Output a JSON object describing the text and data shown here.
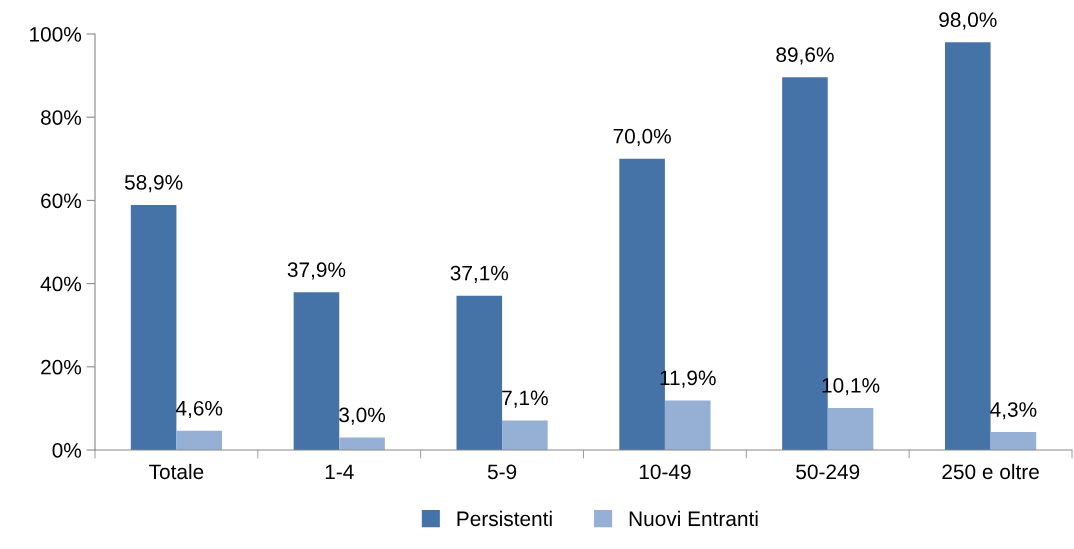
{
  "chart_data": {
    "type": "bar",
    "categories": [
      "Totale",
      "1-4",
      "5-9",
      "10-49",
      "50-249",
      "250 e oltre"
    ],
    "series": [
      {
        "name": "Persistenti",
        "color": "#4673a7",
        "values": [
          58.9,
          37.9,
          37.1,
          70.0,
          89.6,
          98.0
        ],
        "value_labels": [
          "58,9%",
          "37,9%",
          "37,1%",
          "70,0%",
          "89,6%",
          "98,0%"
        ]
      },
      {
        "name": "Nuovi Entranti",
        "color": "#96afd4",
        "values": [
          4.6,
          3.0,
          7.1,
          11.9,
          10.1,
          4.3
        ],
        "value_labels": [
          "4,6%",
          "3,0%",
          "7,1%",
          "11,9%",
          "10,1%",
          "4,3%"
        ]
      }
    ],
    "ylim": [
      0,
      100
    ],
    "yticks": [
      {
        "value": 0,
        "label": "0%"
      },
      {
        "value": 20,
        "label": "20%"
      },
      {
        "value": 40,
        "label": "40%"
      },
      {
        "value": 60,
        "label": "60%"
      },
      {
        "value": 80,
        "label": "80%"
      },
      {
        "value": 100,
        "label": "100%"
      }
    ],
    "grid": false,
    "legend": "bottom"
  }
}
